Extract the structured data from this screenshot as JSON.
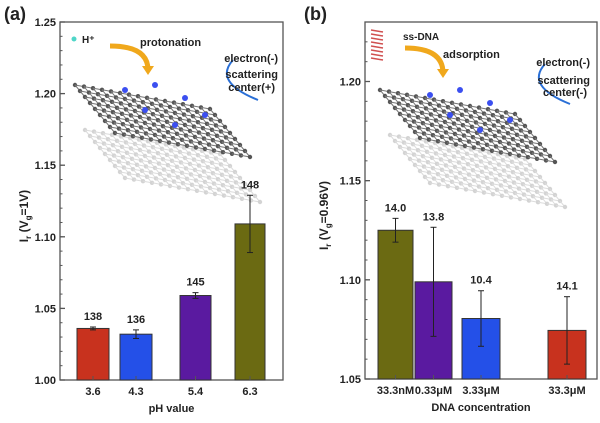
{
  "chart_data": [
    {
      "type": "bar",
      "panel_label": "(a)",
      "xlabel": "pH value",
      "ylabel_main": "I",
      "ylabel_sub1": "r",
      "ylabel_mid": " (V",
      "ylabel_sub2": "g",
      "ylabel_end": "=1V)",
      "ylim": [
        1.0,
        1.25
      ],
      "yticks": [
        "1.00",
        "1.05",
        "1.10",
        "1.15",
        "1.20",
        "1.25"
      ],
      "categories": [
        "3.6",
        "4.3",
        "5.4",
        "6.3"
      ],
      "values": [
        1.036,
        1.032,
        1.059,
        1.109
      ],
      "errors": [
        0.001,
        0.003,
        0.002,
        0.02
      ],
      "data_labels": [
        "138",
        "136",
        "145",
        "148"
      ],
      "colors": [
        "#c8321e",
        "#2450e8",
        "#5a1aa0",
        "#6b6a12"
      ],
      "annotations": {
        "ion": "H⁺",
        "process": "protonation",
        "electron": "electron(-)",
        "scatter1": "scattering",
        "scatter2": "center(+)"
      }
    },
    {
      "type": "bar",
      "panel_label": "(b)",
      "xlabel": "DNA concentration",
      "ylabel_main": "I",
      "ylabel_sub1": "r",
      "ylabel_mid": " (V",
      "ylabel_sub2": "g",
      "ylabel_end": "=0.96V)",
      "ylim": [
        1.05,
        1.23
      ],
      "yticks": [
        "1.05",
        "1.10",
        "1.15",
        "1.20"
      ],
      "categories": [
        "33.3nM",
        "0.33μM",
        "3.33μM",
        "33.3μM"
      ],
      "values": [
        1.125,
        1.099,
        1.0805,
        1.0745
      ],
      "errors": [
        0.006,
        0.0275,
        0.014,
        0.017
      ],
      "data_labels": [
        "14.0",
        "13.8",
        "10.4",
        "14.1"
      ],
      "colors": [
        "#6b6a12",
        "#5a1aa0",
        "#2450e8",
        "#c8321e"
      ],
      "annotations": {
        "ion": "ss-DNA",
        "process": "adsorption",
        "electron": "electron(-)",
        "scatter1": "scattering",
        "scatter2": "center(-)"
      }
    }
  ]
}
